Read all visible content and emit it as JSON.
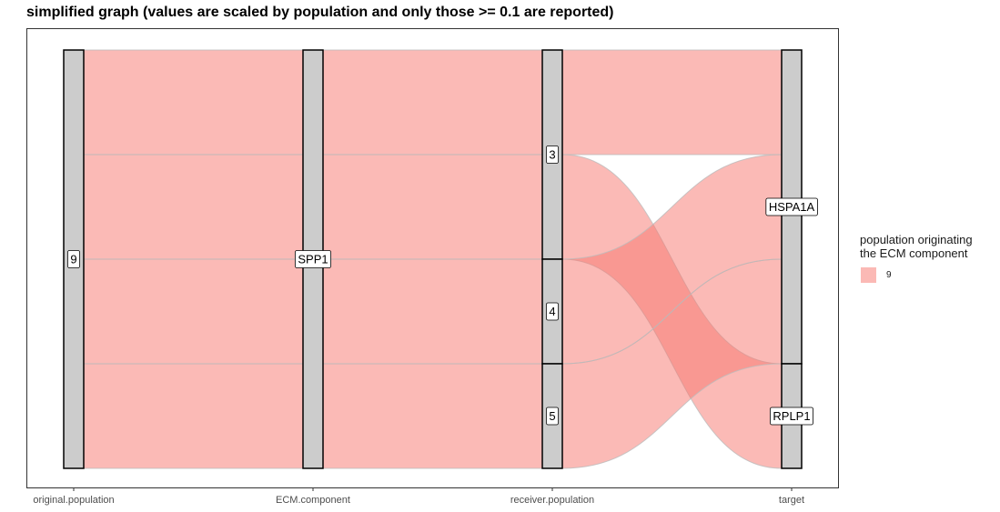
{
  "chart_data": {
    "type": "alluvial",
    "title": "simplified graph (values are scaled by population and only those >= 0.1 are reported)",
    "axes": [
      "original.population",
      "ECM.component",
      "receiver.population",
      "target"
    ],
    "strata": [
      {
        "axis": "original.population",
        "labels": [
          {
            "name": "9",
            "value": 1.0
          }
        ]
      },
      {
        "axis": "ECM.component",
        "labels": [
          {
            "name": "SPP1",
            "value": 1.0
          }
        ]
      },
      {
        "axis": "receiver.population",
        "labels": [
          {
            "name": "3",
            "value": 0.5
          },
          {
            "name": "4",
            "value": 0.25
          },
          {
            "name": "5",
            "value": 0.25
          }
        ]
      },
      {
        "axis": "target",
        "labels": [
          {
            "name": "HSPA1A",
            "value": 0.75
          },
          {
            "name": "RPLP1",
            "value": 0.25
          }
        ]
      }
    ],
    "flows": [
      {
        "original.population": "9",
        "ECM.component": "SPP1",
        "receiver.population": "3",
        "target": "HSPA1A",
        "value": 0.25
      },
      {
        "original.population": "9",
        "ECM.component": "SPP1",
        "receiver.population": "3",
        "target": "RPLP1",
        "value": 0.25
      },
      {
        "original.population": "9",
        "ECM.component": "SPP1",
        "receiver.population": "4",
        "target": "HSPA1A",
        "value": 0.25
      },
      {
        "original.population": "9",
        "ECM.component": "SPP1",
        "receiver.population": "5",
        "target": "HSPA1A",
        "value": 0.25
      }
    ],
    "legend": {
      "title_lines": [
        "population originating",
        "the ECM component"
      ],
      "items": [
        {
          "label": "9",
          "color": "#F8766D"
        }
      ],
      "position": "right"
    },
    "colors": {
      "fill": "#F8766D",
      "stratum": "#CCCCCC",
      "border": "#000000"
    },
    "grid": false
  }
}
